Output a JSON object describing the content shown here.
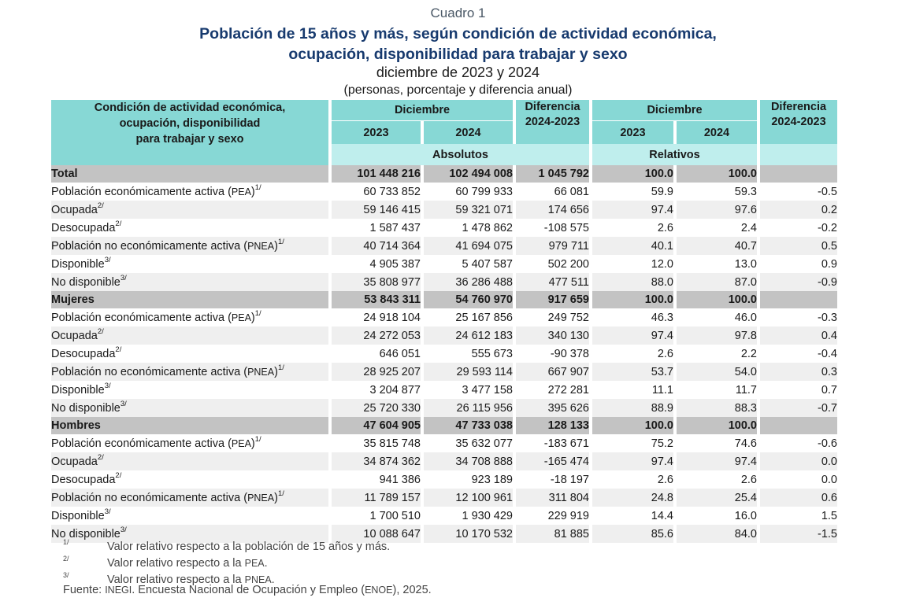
{
  "header": {
    "cuadro": "Cuadro 1",
    "title_line1": "Población de 15 años y más, según condición de actividad económica,",
    "title_line2": "ocupación, disponibilidad para trabajar y sexo",
    "subtitle": "diciembre de 2023 y 2024",
    "units": "(personas, porcentaje y diferencia anual)"
  },
  "table_header": {
    "label_lines": [
      "Condición de actividad económica,",
      "ocupación, disponibilidad",
      "para trabajar y sexo"
    ],
    "group1": "Diciembre",
    "diff1_line1": "Diferencia",
    "diff1_line2": "2024-2023",
    "group2": "Diciembre",
    "diff2_line1": "Diferencia",
    "diff2_line2": "2024-2023",
    "year_a1": "2023",
    "year_b1": "2024",
    "year_a2": "2023",
    "year_b2": "2024",
    "absolutos": "Absolutos",
    "relativos": "Relativos"
  },
  "rows": [
    {
      "kind": "sec",
      "label": "Total",
      "sup": "",
      "a23": "101 448 216",
      "a24": "102 494 008",
      "d": "1 045 792",
      "r23": "100.0",
      "r24": "100.0",
      "rd": ""
    },
    {
      "kind": "l1",
      "label": "Población económicamente activa (",
      "abbr": "PEA",
      "close": ")",
      "sup": "1/",
      "a23": "60 733 852",
      "a24": "60 799 933",
      "d": "66 081",
      "r23": "59.9",
      "r24": "59.3",
      "rd": "-0.5"
    },
    {
      "kind": "l2",
      "label": "Ocupada",
      "sup": "2/",
      "a23": "59 146 415",
      "a24": "59 321 071",
      "d": "174 656",
      "r23": "97.4",
      "r24": "97.6",
      "rd": "0.2"
    },
    {
      "kind": "l2",
      "label": "Desocupada",
      "sup": "2/",
      "a23": "1 587 437",
      "a24": "1 478 862",
      "d": "-108 575",
      "r23": "2.6",
      "r24": "2.4",
      "rd": "-0.2"
    },
    {
      "kind": "l1",
      "label": "Población no económicamente activa (",
      "abbr": "PNEA",
      "close": ")",
      "sup": "1/",
      "a23": "40 714 364",
      "a24": "41 694 075",
      "d": "979 711",
      "r23": "40.1",
      "r24": "40.7",
      "rd": "0.5"
    },
    {
      "kind": "l2",
      "label": "Disponible",
      "sup": "3/",
      "a23": "4 905 387",
      "a24": "5 407 587",
      "d": "502 200",
      "r23": "12.0",
      "r24": "13.0",
      "rd": "0.9"
    },
    {
      "kind": "l2",
      "label": "No disponible",
      "sup": "3/",
      "a23": "35 808 977",
      "a24": "36 286 488",
      "d": "477 511",
      "r23": "88.0",
      "r24": "87.0",
      "rd": "-0.9"
    },
    {
      "kind": "sec",
      "label": "Mujeres",
      "sup": "",
      "a23": "53 843 311",
      "a24": "54 760 970",
      "d": "917 659",
      "r23": "100.0",
      "r24": "100.0",
      "rd": ""
    },
    {
      "kind": "l1",
      "label": "Población económicamente activa (",
      "abbr": "PEA",
      "close": ")",
      "sup": "1/",
      "a23": "24 918 104",
      "a24": "25 167 856",
      "d": "249 752",
      "r23": "46.3",
      "r24": "46.0",
      "rd": "-0.3"
    },
    {
      "kind": "l2",
      "label": "Ocupada",
      "sup": "2/",
      "a23": "24 272 053",
      "a24": "24 612 183",
      "d": "340 130",
      "r23": "97.4",
      "r24": "97.8",
      "rd": "0.4"
    },
    {
      "kind": "l2",
      "label": "Desocupada",
      "sup": "2/",
      "a23": "646 051",
      "a24": "555 673",
      "d": "-90 378",
      "r23": "2.6",
      "r24": "2.2",
      "rd": "-0.4"
    },
    {
      "kind": "l1",
      "label": "Población no económicamente activa (",
      "abbr": "PNEA",
      "close": ")",
      "sup": "1/",
      "a23": "28 925 207",
      "a24": "29 593 114",
      "d": "667 907",
      "r23": "53.7",
      "r24": "54.0",
      "rd": "0.3"
    },
    {
      "kind": "l2",
      "label": "Disponible",
      "sup": "3/",
      "a23": "3 204 877",
      "a24": "3 477 158",
      "d": "272 281",
      "r23": "11.1",
      "r24": "11.7",
      "rd": "0.7"
    },
    {
      "kind": "l2",
      "label": "No disponible",
      "sup": "3/",
      "a23": "25 720 330",
      "a24": "26 115 956",
      "d": "395 626",
      "r23": "88.9",
      "r24": "88.3",
      "rd": "-0.7"
    },
    {
      "kind": "sec",
      "label": "Hombres",
      "sup": "",
      "a23": "47 604 905",
      "a24": "47 733 038",
      "d": "128 133",
      "r23": "100.0",
      "r24": "100.0",
      "rd": ""
    },
    {
      "kind": "l1",
      "label": "Población económicamente activa (",
      "abbr": "PEA",
      "close": ")",
      "sup": "1/",
      "a23": "35 815 748",
      "a24": "35 632 077",
      "d": "-183 671",
      "r23": "75.2",
      "r24": "74.6",
      "rd": "-0.6"
    },
    {
      "kind": "l2",
      "label": "Ocupada",
      "sup": "2/",
      "a23": "34 874 362",
      "a24": "34 708 888",
      "d": "-165 474",
      "r23": "97.4",
      "r24": "97.4",
      "rd": "0.0"
    },
    {
      "kind": "l2",
      "label": "Desocupada",
      "sup": "2/",
      "a23": "941 386",
      "a24": "923 189",
      "d": "-18 197",
      "r23": "2.6",
      "r24": "2.6",
      "rd": "0.0"
    },
    {
      "kind": "l1",
      "label": "Población no económicamente activa (",
      "abbr": "PNEA",
      "close": ")",
      "sup": "1/",
      "a23": "11 789 157",
      "a24": "12 100 961",
      "d": "311 804",
      "r23": "24.8",
      "r24": "25.4",
      "rd": "0.6"
    },
    {
      "kind": "l2",
      "label": "Disponible",
      "sup": "3/",
      "a23": "1 700 510",
      "a24": "1 930 429",
      "d": "229 919",
      "r23": "14.4",
      "r24": "16.0",
      "rd": "1.5"
    },
    {
      "kind": "l2",
      "label": "No disponible",
      "sup": "3/",
      "a23": "10 088 647",
      "a24": "10 170 532",
      "d": "81 885",
      "r23": "85.6",
      "r24": "84.0",
      "rd": "-1.5"
    }
  ],
  "notes": [
    {
      "mark": "1/",
      "pre": "Valor relativo respecto a la población de 15 años y más.",
      "abbr": "",
      "post": ""
    },
    {
      "mark": "2/",
      "pre": "Valor relativo respecto a la ",
      "abbr": "PEA",
      "post": "."
    },
    {
      "mark": "3/",
      "pre": "Valor relativo respecto a la ",
      "abbr": "PNEA",
      "post": "."
    }
  ],
  "source": {
    "pre": "Fuente: ",
    "abbr1": "INEGI",
    "mid": ". Encuesta Nacional de Ocupación y Empleo (",
    "abbr2": "ENOE",
    "post": "), 2025."
  }
}
